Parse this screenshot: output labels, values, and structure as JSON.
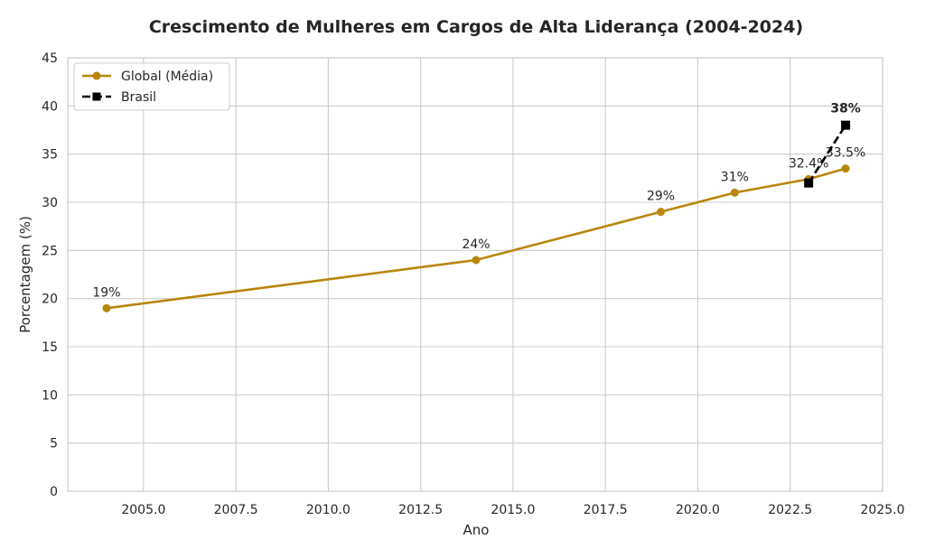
{
  "chart_data": {
    "type": "line",
    "title": "Crescimento de Mulheres em Cargos de Alta Liderança (2004-2024)",
    "xlabel": "Ano",
    "ylabel": "Porcentagem (%)",
    "xlim": [
      2002.95,
      2025.0
    ],
    "ylim": [
      0,
      45
    ],
    "xticks": [
      2005.0,
      2007.5,
      2010.0,
      2012.5,
      2015.0,
      2017.5,
      2020.0,
      2022.5,
      2025.0
    ],
    "xtick_labels": [
      "2005.0",
      "2007.5",
      "2010.0",
      "2012.5",
      "2015.0",
      "2017.5",
      "2020.0",
      "2022.5",
      "2025.0"
    ],
    "yticks": [
      0,
      5,
      10,
      15,
      20,
      25,
      30,
      35,
      40,
      45
    ],
    "ytick_labels": [
      "0",
      "5",
      "10",
      "15",
      "20",
      "25",
      "30",
      "35",
      "40",
      "45"
    ],
    "grid": true,
    "legend_position": "top-left",
    "series": [
      {
        "name": "Global (Média)",
        "color": "#b8860b",
        "style": "solid",
        "marker": "circle",
        "x": [
          2004,
          2014,
          2019,
          2021,
          2023,
          2024
        ],
        "values": [
          19,
          24,
          29,
          31,
          32.4,
          33.5
        ],
        "labels": [
          "19%",
          "24%",
          "29%",
          "31%",
          "32.4%",
          "33.5%"
        ]
      },
      {
        "name": "Brasil",
        "color": "#000000",
        "style": "dashed",
        "marker": "square",
        "x": [
          2023,
          2024
        ],
        "values": [
          32,
          38
        ],
        "labels": [
          "",
          "38%"
        ]
      }
    ]
  }
}
